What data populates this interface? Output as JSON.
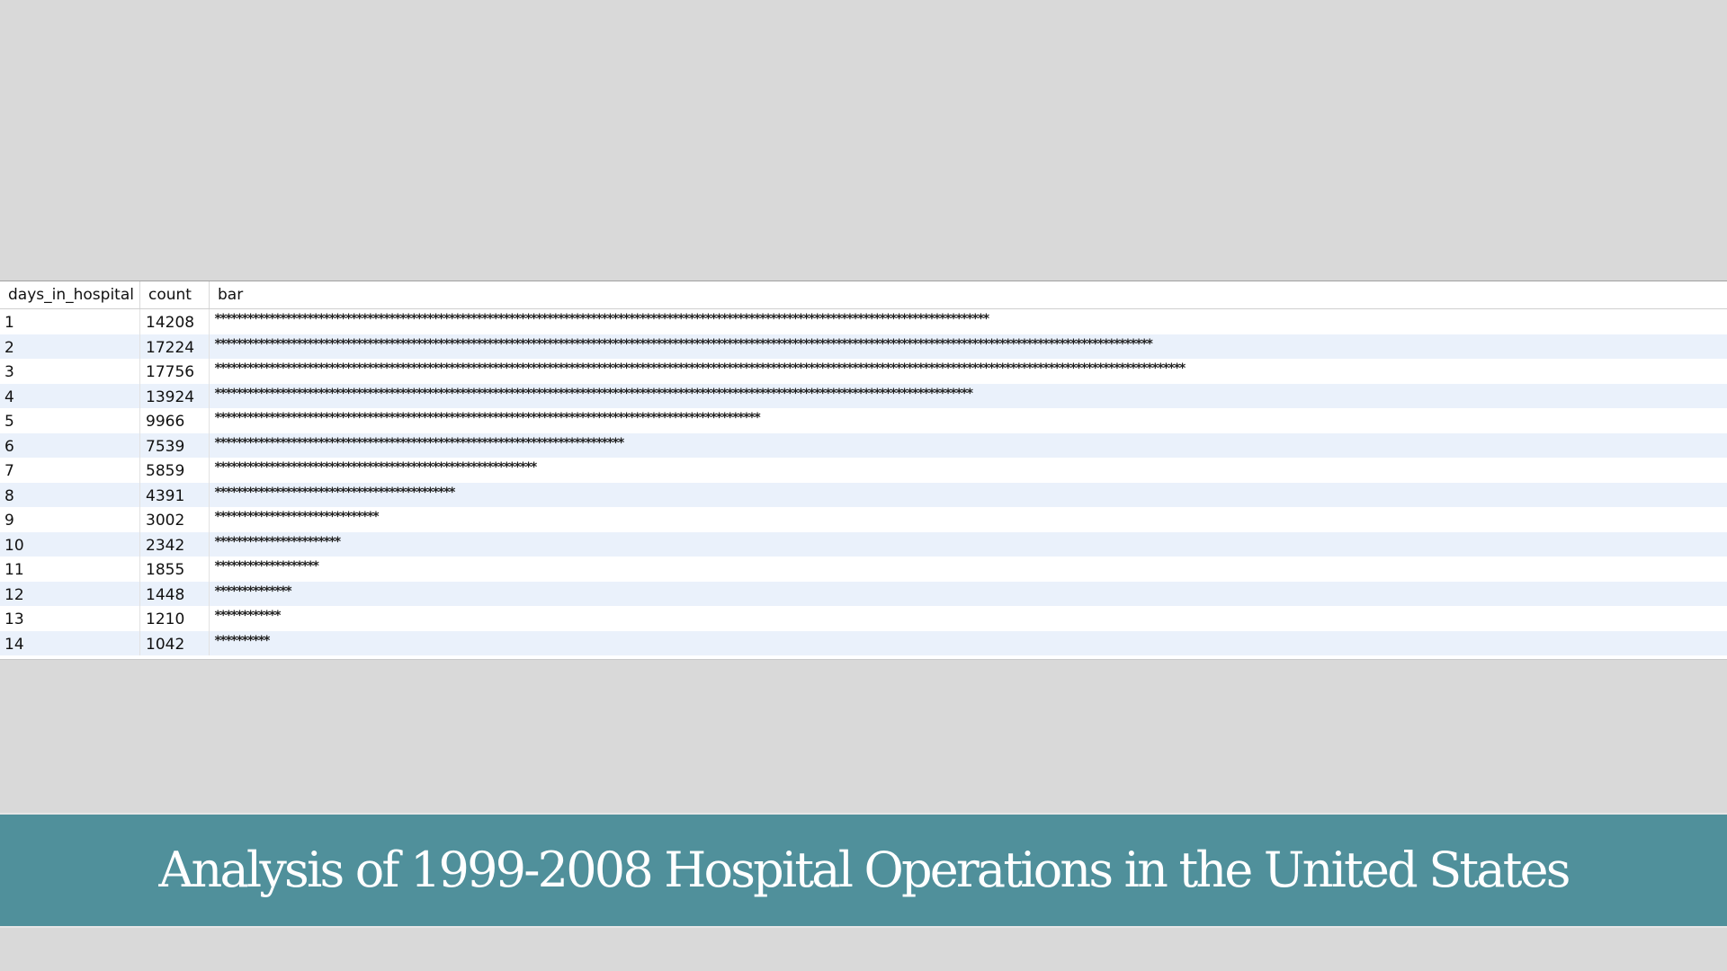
{
  "table": {
    "columns": [
      "days_in_hospital",
      "count",
      "bar"
    ],
    "rows": [
      {
        "days_in_hospital": "1",
        "count": "14208"
      },
      {
        "days_in_hospital": "2",
        "count": "17224"
      },
      {
        "days_in_hospital": "3",
        "count": "17756"
      },
      {
        "days_in_hospital": "4",
        "count": "13924"
      },
      {
        "days_in_hospital": "5",
        "count": "9966"
      },
      {
        "days_in_hospital": "6",
        "count": "7539"
      },
      {
        "days_in_hospital": "7",
        "count": "5859"
      },
      {
        "days_in_hospital": "8",
        "count": "4391"
      },
      {
        "days_in_hospital": "9",
        "count": "3002"
      },
      {
        "days_in_hospital": "10",
        "count": "2342"
      },
      {
        "days_in_hospital": "11",
        "count": "1855"
      },
      {
        "days_in_hospital": "12",
        "count": "1448"
      },
      {
        "days_in_hospital": "13",
        "count": "1210"
      },
      {
        "days_in_hospital": "14",
        "count": "1042"
      }
    ],
    "bar_char": "*",
    "row_colors": {
      "even": "#ffffff",
      "odd": "#eaf1fb"
    }
  },
  "title": {
    "text": "Analysis of 1999-2008 Hospital Operations in the United States",
    "band_color": "#50909b"
  }
}
